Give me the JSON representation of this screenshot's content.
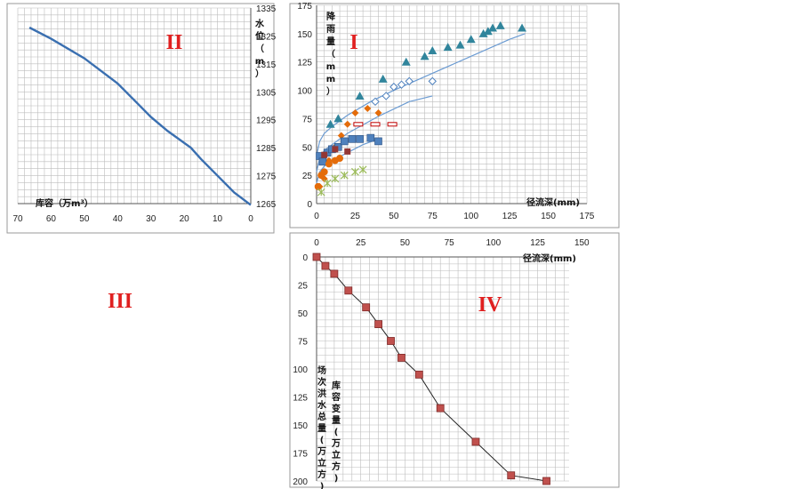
{
  "colors": {
    "curve": "#3a6fb0",
    "grid": "#bdbdbd",
    "frame": "#9a9a9a",
    "roman": "#e02020",
    "square": "#c0504d"
  },
  "chart_data": [
    {
      "id": "II",
      "type": "line",
      "panel_label": "II",
      "xlabel": "库容（万m³）",
      "ylabel": "水位（m）",
      "xlim": [
        70,
        0
      ],
      "ylim": [
        1265,
        1335
      ],
      "x_ticks": [
        70,
        60,
        50,
        40,
        30,
        20,
        10,
        0
      ],
      "y_ticks": [
        1265,
        1275,
        1285,
        1295,
        1305,
        1315,
        1325,
        1335
      ],
      "grid": true,
      "series": [
        {
          "values_x": [
            66.5,
            60,
            50,
            40,
            35,
            30,
            25,
            18,
            15,
            10,
            5,
            0
          ],
          "values_y": [
            1328,
            1324,
            1317,
            1308,
            1302,
            1296,
            1291,
            1285,
            1281,
            1275,
            1269,
            1264.5
          ]
        }
      ]
    },
    {
      "id": "I",
      "type": "scatter",
      "panel_label": "I",
      "xlabel": "径流深(mm)",
      "ylabel": "降雨量（mm）",
      "xlim": [
        0,
        175
      ],
      "ylim": [
        0,
        175
      ],
      "x_ticks": [
        0,
        25,
        50,
        75,
        100,
        125,
        150,
        175
      ],
      "y_ticks": [
        0,
        25,
        50,
        75,
        100,
        125,
        150,
        175
      ],
      "grid": true,
      "curves": [
        {
          "values_x": [
            0,
            2,
            5,
            10,
            20,
            35,
            50,
            75,
            100,
            125,
            135
          ],
          "values_y": [
            42,
            55,
            62,
            68,
            78,
            90,
            100,
            115,
            130,
            145,
            150
          ]
        },
        {
          "values_x": [
            0,
            2,
            5,
            10,
            20,
            40,
            60,
            75
          ],
          "values_y": [
            28,
            40,
            47,
            52,
            62,
            77,
            90,
            95
          ]
        },
        {
          "values_x": [
            0,
            2,
            5,
            10,
            20,
            30,
            40
          ],
          "values_y": [
            18,
            28,
            33,
            38,
            45,
            52,
            57
          ]
        }
      ],
      "series": [
        {
          "marker": "triangle",
          "color": "#31859c",
          "values_x": [
            9,
            14,
            28,
            43,
            58,
            70,
            75,
            85,
            93,
            100,
            108,
            111,
            114,
            119,
            133
          ],
          "values_y": [
            70,
            75,
            95,
            110,
            125,
            130,
            135,
            138,
            140,
            145,
            150,
            152,
            155,
            157,
            155
          ]
        },
        {
          "marker": "diamond-open",
          "color": "#4f81bd",
          "values_x": [
            38,
            45,
            50,
            55,
            60,
            75
          ],
          "values_y": [
            90,
            95,
            103,
            105,
            108,
            108
          ]
        },
        {
          "marker": "diamond",
          "color": "#e46c0a",
          "values_x": [
            2,
            5,
            8,
            12,
            16,
            20,
            25,
            33,
            40
          ],
          "values_y": [
            15,
            22,
            38,
            50,
            60,
            70,
            80,
            84,
            80
          ]
        },
        {
          "marker": "square",
          "color": "#4f81bd",
          "values_x": [
            2,
            4,
            7,
            10,
            14,
            18,
            23,
            28,
            35,
            40
          ],
          "values_y": [
            42,
            37,
            45,
            48,
            50,
            55,
            57,
            57,
            58,
            55
          ]
        },
        {
          "marker": "circle",
          "color": "#e46c0a",
          "values_x": [
            1,
            3,
            5,
            8,
            12,
            15
          ],
          "values_y": [
            15,
            25,
            28,
            35,
            38,
            40
          ]
        },
        {
          "marker": "cross",
          "color": "#9bbb59",
          "values_x": [
            3,
            7,
            12,
            18,
            25,
            30
          ],
          "values_y": [
            10,
            18,
            22,
            25,
            28,
            30
          ]
        },
        {
          "marker": "tag",
          "color": "#c00000",
          "values_x": [
            27,
            38,
            49
          ],
          "values_y": [
            70,
            70,
            70
          ]
        },
        {
          "marker": "square-dark",
          "color": "#943634",
          "values_x": [
            5,
            12,
            20
          ],
          "values_y": [
            43,
            48,
            46
          ]
        }
      ]
    },
    {
      "id": "IV",
      "type": "line",
      "panel_label": "IV",
      "xlabel": "径流深(mm)",
      "ylabel_left": "场次洪水总量(万立方)",
      "ylabel_right": "库容变量(万立方)",
      "xlim": [
        0,
        175
      ],
      "ylim": [
        200,
        0
      ],
      "x_ticks": [
        0,
        25,
        50,
        75,
        100,
        125,
        150
      ],
      "y_ticks": [
        0,
        25,
        50,
        75,
        100,
        125,
        150,
        175,
        200
      ],
      "grid": true,
      "series": [
        {
          "marker": "square",
          "values_x": [
            0,
            5,
            10,
            18,
            28,
            35,
            42,
            48,
            58,
            70,
            90,
            110,
            130
          ],
          "values_y": [
            0,
            8,
            15,
            30,
            45,
            60,
            75,
            90,
            105,
            135,
            165,
            195,
            200
          ]
        }
      ]
    },
    {
      "id": "III",
      "type": "label",
      "panel_label": "III"
    }
  ]
}
